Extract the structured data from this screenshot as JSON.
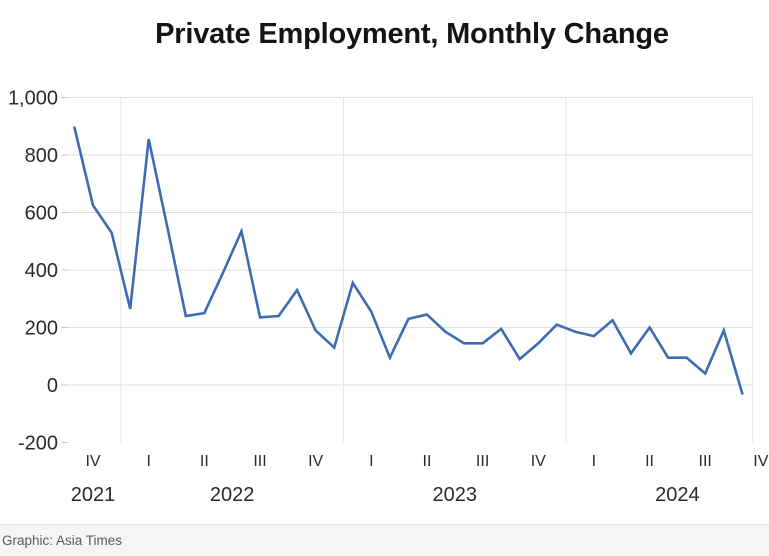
{
  "footer": {
    "credit": "Graphic: Asia Times"
  },
  "chart_data": {
    "type": "line",
    "title": "Private Employment, Monthly Change",
    "xlabel": "",
    "ylabel": "",
    "ylim": [
      -200,
      1000
    ],
    "grid": true,
    "legend": "none",
    "series": [
      {
        "name": "Private employment, monthly change (thousands)",
        "values": [
          895,
          625,
          530,
          265,
          855,
          550,
          240,
          250,
          390,
          535,
          235,
          240,
          330,
          190,
          130,
          355,
          255,
          95,
          230,
          245,
          185,
          145,
          145,
          195,
          90,
          145,
          210,
          185,
          170,
          225,
          110,
          200,
          95,
          95,
          40,
          190,
          -30
        ]
      }
    ],
    "x": [
      "Oct-21",
      "Nov-21",
      "Dec-21",
      "Jan-22",
      "Feb-22",
      "Mar-22",
      "Apr-22",
      "May-22",
      "Jun-22",
      "Jul-22",
      "Aug-22",
      "Sep-22",
      "Oct-22",
      "Nov-22",
      "Dec-22",
      "Jan-23",
      "Feb-23",
      "Mar-23",
      "Apr-23",
      "May-23",
      "Jun-23",
      "Jul-23",
      "Aug-23",
      "Sep-23",
      "Oct-23",
      "Nov-23",
      "Dec-23",
      "Jan-24",
      "Feb-24",
      "Mar-24",
      "Apr-24",
      "May-24",
      "Jun-24",
      "Jul-24",
      "Aug-24",
      "Sep-24",
      "Oct-24"
    ],
    "x_axis": {
      "years": [
        {
          "label": "2021",
          "quarters": [
            "IV"
          ]
        },
        {
          "label": "2022",
          "quarters": [
            "I",
            "II",
            "III",
            "IV"
          ]
        },
        {
          "label": "2023",
          "quarters": [
            "I",
            "II",
            "III",
            "IV"
          ]
        },
        {
          "label": "2024",
          "quarters": [
            "I",
            "II",
            "III",
            "IV"
          ]
        }
      ]
    },
    "y_axis": {
      "ticks": [
        {
          "label": "1,000",
          "value": 1000
        },
        {
          "label": "800",
          "value": 800
        },
        {
          "label": "600",
          "value": 600
        },
        {
          "label": "400",
          "value": 400
        },
        {
          "label": "200",
          "value": 200
        },
        {
          "label": "0",
          "value": 0
        },
        {
          "label": "-200",
          "value": -200
        }
      ]
    },
    "colors": {
      "line": "#3e6cb3",
      "grid": "#dfdfdf",
      "vgrid": "#e6e6e6",
      "tick": "#c2c2c2",
      "axis_text": "#2b2b2b"
    }
  }
}
